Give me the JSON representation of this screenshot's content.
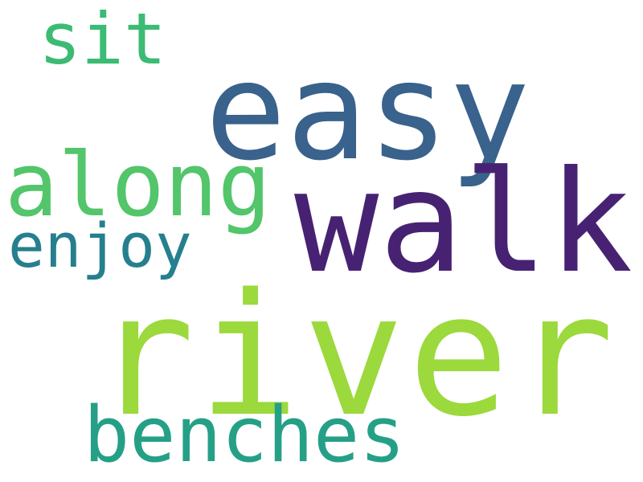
{
  "words": {
    "river": {
      "text": "river",
      "color": "#9bd93c"
    },
    "easy": {
      "text": "easy",
      "color": "#39628c"
    },
    "walk": {
      "text": "walk",
      "color": "#472273"
    },
    "along": {
      "text": "along",
      "color": "#53c56a"
    },
    "benches": {
      "text": "benches",
      "color": "#25a087"
    },
    "sit": {
      "text": "sit",
      "color": "#3bbb74"
    },
    "enjoy": {
      "text": "enjoy",
      "color": "#267f8e"
    }
  }
}
